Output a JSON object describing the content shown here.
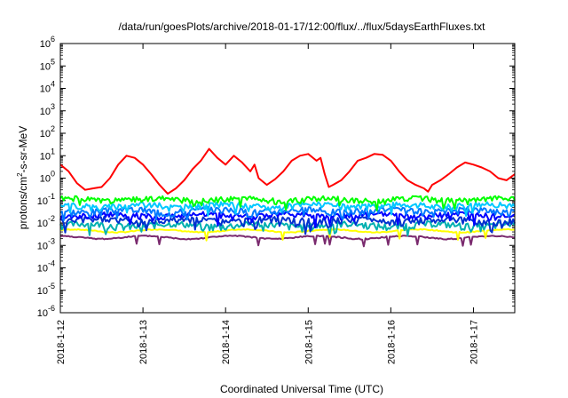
{
  "chart_data": {
    "type": "line",
    "title": "/data/run/goesPlots/archive/2018-01-17/12:00/flux/../flux/5daysEarthFluxes.txt",
    "xlabel": "Coordinated Universal Time (UTC)",
    "ylabel": {
      "base": "protons/cm",
      "sup": "2",
      "rest": "-s-sr-MeV"
    },
    "ylog": true,
    "ylim": [
      1e-06,
      1000000.0
    ],
    "xlim": [
      0,
      5.5
    ],
    "x_unit": "days since 2018-1-12 00:00 UTC",
    "xticks": [
      {
        "value": 0,
        "label": "2018-1-12"
      },
      {
        "value": 1,
        "label": "2018-1-13"
      },
      {
        "value": 2,
        "label": "2018-1-14"
      },
      {
        "value": 3,
        "label": "2018-1-15"
      },
      {
        "value": 4,
        "label": "2018-1-16"
      },
      {
        "value": 5,
        "label": "2018-1-17"
      }
    ],
    "yticks": [
      {
        "value": 1e-06,
        "mant": "10",
        "exp": "-6"
      },
      {
        "value": 1e-05,
        "mant": "10",
        "exp": "-5"
      },
      {
        "value": 0.0001,
        "mant": "10",
        "exp": "-4"
      },
      {
        "value": 0.001,
        "mant": "10",
        "exp": "-3"
      },
      {
        "value": 0.01,
        "mant": "10",
        "exp": "-2"
      },
      {
        "value": 0.1,
        "mant": "10",
        "exp": "-1"
      },
      {
        "value": 1.0,
        "mant": "10",
        "exp": "0"
      },
      {
        "value": 10.0,
        "mant": "10",
        "exp": "1"
      },
      {
        "value": 100.0,
        "mant": "10",
        "exp": "2"
      },
      {
        "value": 1000.0,
        "mant": "10",
        "exp": "3"
      },
      {
        "value": 10000.0,
        "mant": "10",
        "exp": "4"
      },
      {
        "value": 100000.0,
        "mant": "10",
        "exp": "5"
      },
      {
        "value": 1000000.0,
        "mant": "10",
        "exp": "6"
      }
    ],
    "grid": false,
    "series": [
      {
        "color": "#ff0000",
        "points": [
          [
            0.0,
            4.0
          ],
          [
            0.1,
            2.0
          ],
          [
            0.2,
            0.6
          ],
          [
            0.3,
            0.3
          ],
          [
            0.4,
            0.35
          ],
          [
            0.5,
            0.4
          ],
          [
            0.6,
            1.0
          ],
          [
            0.7,
            4.0
          ],
          [
            0.8,
            10.0
          ],
          [
            0.9,
            8.0
          ],
          [
            1.0,
            4.0
          ],
          [
            1.1,
            1.5
          ],
          [
            1.2,
            0.5
          ],
          [
            1.3,
            0.2
          ],
          [
            1.4,
            0.35
          ],
          [
            1.5,
            0.8
          ],
          [
            1.6,
            2.5
          ],
          [
            1.7,
            6.0
          ],
          [
            1.8,
            20.0
          ],
          [
            1.9,
            8.0
          ],
          [
            2.0,
            4.0
          ],
          [
            2.1,
            10.0
          ],
          [
            2.2,
            5.0
          ],
          [
            2.3,
            2.0
          ],
          [
            2.35,
            4.0
          ],
          [
            2.4,
            1.0
          ],
          [
            2.5,
            0.5
          ],
          [
            2.6,
            0.9
          ],
          [
            2.7,
            2.0
          ],
          [
            2.8,
            6.0
          ],
          [
            2.9,
            10.0
          ],
          [
            3.0,
            12.0
          ],
          [
            3.1,
            6.0
          ],
          [
            3.15,
            8.0
          ],
          [
            3.2,
            1.5
          ],
          [
            3.25,
            0.4
          ],
          [
            3.3,
            0.5
          ],
          [
            3.4,
            0.8
          ],
          [
            3.5,
            2.0
          ],
          [
            3.6,
            6.0
          ],
          [
            3.7,
            8.0
          ],
          [
            3.8,
            12.0
          ],
          [
            3.9,
            11.0
          ],
          [
            4.0,
            6.0
          ],
          [
            4.1,
            2.0
          ],
          [
            4.2,
            0.8
          ],
          [
            4.3,
            0.5
          ],
          [
            4.4,
            0.35
          ],
          [
            4.45,
            0.25
          ],
          [
            4.5,
            0.5
          ],
          [
            4.6,
            0.8
          ],
          [
            4.7,
            1.5
          ],
          [
            4.8,
            3.0
          ],
          [
            4.9,
            5.0
          ],
          [
            5.0,
            4.0
          ],
          [
            5.1,
            3.0
          ],
          [
            5.2,
            2.0
          ],
          [
            5.3,
            1.0
          ],
          [
            5.4,
            0.8
          ],
          [
            5.5,
            1.5
          ]
        ]
      },
      {
        "color": "#00ff00",
        "base": 0.11,
        "amp": 0.3,
        "seed": 1
      },
      {
        "color": "#00c8ff",
        "base": 0.06,
        "amp": 0.3,
        "seed": 2
      },
      {
        "color": "#0078ff",
        "base": 0.035,
        "amp": 0.35,
        "seed": 3
      },
      {
        "color": "#0000ff",
        "base": 0.022,
        "amp": 0.3,
        "seed": 4
      },
      {
        "color": "#0030d0",
        "base": 0.013,
        "amp": 0.35,
        "seed": 5
      },
      {
        "color": "#00b0b0",
        "base": 0.008,
        "amp": 0.35,
        "seed": 6
      },
      {
        "color": "#ffff00",
        "base": 0.0045,
        "amp": 0.05,
        "seed": 7
      },
      {
        "color": "#7a2a6e",
        "base": 0.0023,
        "amp": 0.06,
        "seed": 8
      }
    ]
  }
}
